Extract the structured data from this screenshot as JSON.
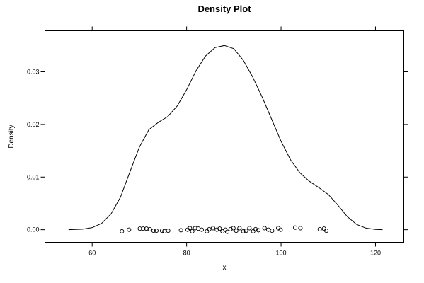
{
  "chart_data": {
    "type": "line",
    "title": "Density Plot",
    "xlabel": "x",
    "ylabel": "Density",
    "xlim": [
      50,
      126
    ],
    "ylim": [
      -0.0024,
      0.0378
    ],
    "x_ticks": [
      60,
      80,
      100,
      120
    ],
    "x_tick_labels": [
      "60",
      "80",
      "100",
      "120"
    ],
    "y_ticks": [
      0,
      0.01,
      0.02,
      0.03
    ],
    "y_tick_labels": [
      "0.00",
      "0.01",
      "0.02",
      "0.03"
    ],
    "grid": false,
    "legend": "none",
    "series": [
      {
        "x": [
          55,
          58,
          60,
          62,
          64,
          66,
          68,
          70,
          72,
          74,
          76,
          78,
          80,
          82,
          84,
          86,
          88,
          90,
          92,
          94,
          96,
          98,
          100,
          102,
          104,
          106,
          108,
          110,
          112,
          114,
          116,
          118,
          120,
          121.5
        ],
        "y": [
          0.0,
          0.0001,
          0.0004,
          0.0012,
          0.003,
          0.0062,
          0.011,
          0.0157,
          0.019,
          0.0204,
          0.0215,
          0.0235,
          0.0266,
          0.0302,
          0.033,
          0.0346,
          0.035,
          0.0344,
          0.0322,
          0.029,
          0.0252,
          0.021,
          0.0168,
          0.0133,
          0.0108,
          0.0092,
          0.008,
          0.0067,
          0.0047,
          0.0025,
          0.001,
          0.0003,
          5e-05,
          0.0
        ]
      }
    ],
    "rug_points": {
      "x": [
        66.3,
        67.8,
        70.1,
        70.8,
        71.5,
        72.2,
        73.0,
        73.6,
        74.8,
        75.3,
        76.1,
        78.8,
        80.2,
        80.7,
        81.2,
        81.8,
        82.5,
        83.2,
        84.3,
        84.8,
        85.6,
        86.4,
        87.0,
        87.6,
        88.2,
        88.6,
        89.3,
        89.9,
        90.5,
        91.2,
        92.0,
        92.6,
        93.3,
        94.1,
        94.6,
        95.2,
        96.5,
        97.3,
        98.1,
        99.4,
        99.9,
        103.0,
        104.1,
        108.2,
        109.1,
        109.6
      ],
      "y": [
        -0.0003,
        0.0,
        0.0002,
        0.0002,
        0.0002,
        0.0001,
        -0.0002,
        -0.0002,
        -0.0002,
        -0.0003,
        -0.0002,
        -0.0001,
        0.0,
        0.0003,
        -0.0003,
        0.0003,
        0.0002,
        0.0,
        -0.0003,
        0.0001,
        0.0003,
        0.0,
        0.0002,
        -0.0003,
        0.0,
        -0.0004,
        0.0001,
        0.0003,
        -0.0002,
        0.0003,
        -0.0003,
        -0.0002,
        0.0003,
        -0.0003,
        0.0001,
        -0.0001,
        0.0003,
        0.0,
        -0.0002,
        0.0003,
        0.0,
        0.0004,
        0.0003,
        0.0001,
        0.0002,
        -0.0002
      ]
    }
  }
}
